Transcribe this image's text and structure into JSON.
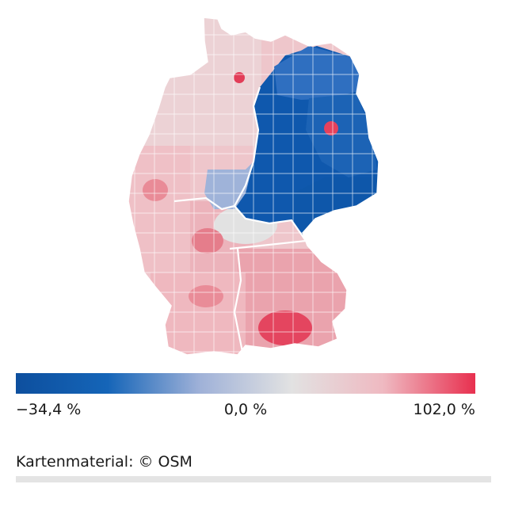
{
  "map": {
    "region": "Germany",
    "colors": {
      "strong_negative": "#0d4f9e",
      "negative": "#1565b8",
      "mild_negative": "#8aa3d0",
      "neutral": "#e2e2e2",
      "mild_positive": "#eec1c7",
      "positive": "#e88893",
      "strong_positive": "#e8304f"
    }
  },
  "legend": {
    "min_label": "−34,4 %",
    "mid_label": "0,0 %",
    "max_label": "102,0 %",
    "min_value": -34.4,
    "mid_value": 0.0,
    "max_value": 102.0,
    "gradient_stops": [
      "#0d4f9e",
      "#1565b8",
      "#9fb1d8",
      "#e2e2e2",
      "#efb9c1",
      "#e8304f"
    ]
  },
  "attribution": "Kartenmaterial: © OSM"
}
